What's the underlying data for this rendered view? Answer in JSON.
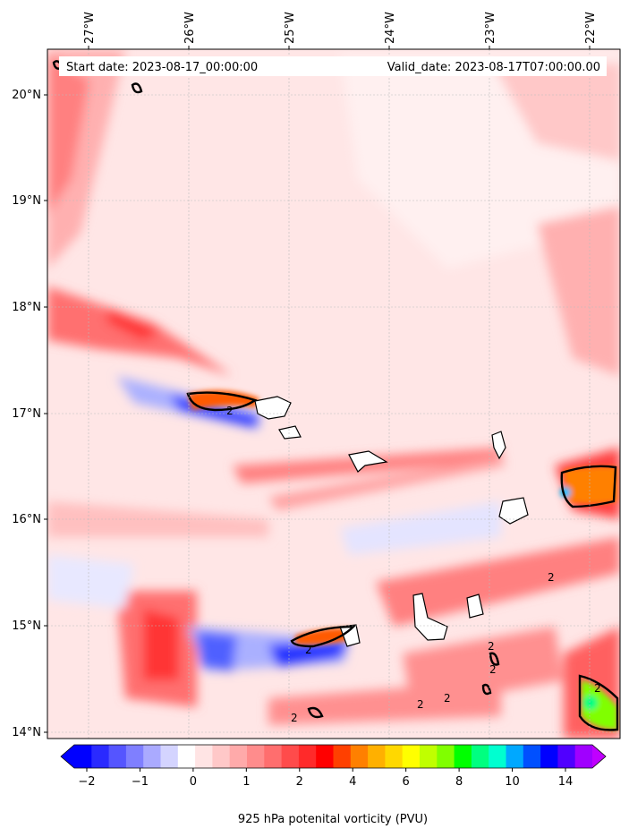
{
  "header": {
    "start_label": "Start date: 2023-08-17_00:00:00",
    "valid_label": "Valid_date: 2023-08-17T07:00:00.00"
  },
  "axes": {
    "lon_ticks": [
      "27°W",
      "26°W",
      "25°W",
      "24°W",
      "23°W",
      "22°W"
    ],
    "lat_ticks": [
      "20°N",
      "19°N",
      "18°N",
      "17°N",
      "16°N",
      "15°N",
      "14°N"
    ]
  },
  "colorbar": {
    "title": "925 hPa potenital vorticity (PVU)",
    "tick_labels": [
      "−2",
      "−1",
      "0",
      "1",
      "2",
      "4",
      "6",
      "8",
      "10",
      "14"
    ],
    "colors": [
      "#0000ff",
      "#2a2aff",
      "#5555ff",
      "#7f7fff",
      "#aaaaff",
      "#d4d4ff",
      "#ffffff",
      "#ffe4e4",
      "#ffc8c8",
      "#ffaaaa",
      "#ff8c8c",
      "#ff6e6e",
      "#ff4b4b",
      "#ff2a2a",
      "#ff0000",
      "#ff4000",
      "#ff8000",
      "#ffb000",
      "#ffd800",
      "#ffff00",
      "#c0ff00",
      "#80ff00",
      "#00ff00",
      "#00ff80",
      "#00ffd0",
      "#00a8ff",
      "#0050ff",
      "#0000ff",
      "#5000ff",
      "#a000ff"
    ],
    "under_color": "#0000ff",
    "over_color": "#c000ff"
  },
  "contour_labels": [
    "2",
    "2",
    "2",
    "2",
    "2",
    "2",
    "2",
    "2",
    "2"
  ]
}
